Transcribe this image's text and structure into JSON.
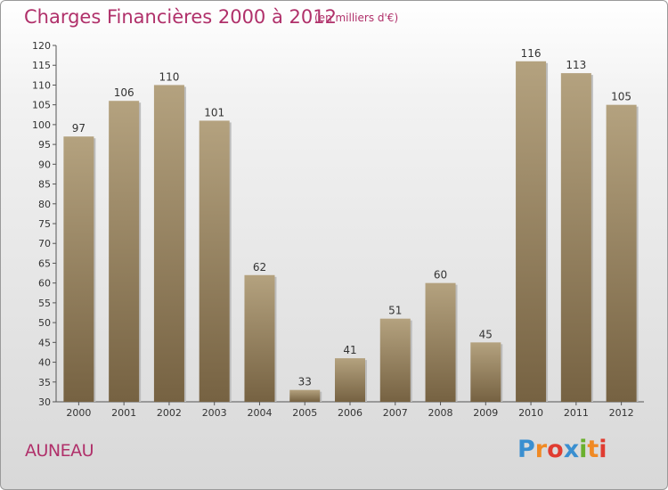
{
  "title": "Charges Financières 2000 à 2012",
  "subtitle": "(en milliers d'€)",
  "city": "AUNEAU",
  "logo": {
    "letters": [
      "P",
      "r",
      "o",
      "x",
      "i",
      "t",
      "i"
    ],
    "colors": [
      "#3a8fd0",
      "#f08a24",
      "#e03c31",
      "#3a8fd0",
      "#6ab02e",
      "#f08a24",
      "#e03c31"
    ]
  },
  "colors": {
    "bar_top": "#b4a27f",
    "bar_bottom": "#766242",
    "accent": "#b0306a"
  },
  "chart_data": {
    "type": "bar",
    "title": "Charges Financières 2000 à 2012",
    "categories": [
      "2000",
      "2001",
      "2002",
      "2003",
      "2004",
      "2005",
      "2006",
      "2007",
      "2008",
      "2009",
      "2010",
      "2011",
      "2012"
    ],
    "values": [
      97,
      106,
      110,
      101,
      62,
      33,
      41,
      51,
      60,
      45,
      116,
      113,
      105
    ],
    "ylim": [
      30,
      120
    ],
    "yticks": [
      30,
      35,
      40,
      45,
      50,
      55,
      60,
      65,
      70,
      75,
      80,
      85,
      90,
      95,
      100,
      105,
      110,
      115,
      120
    ],
    "grid": false,
    "xlabel": "",
    "ylabel": ""
  }
}
